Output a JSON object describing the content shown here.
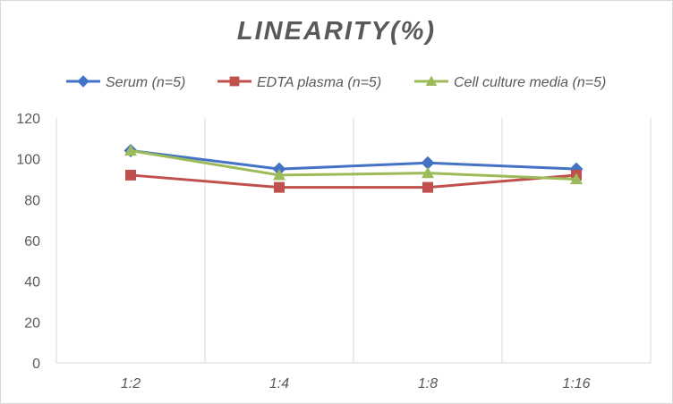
{
  "chart_data": {
    "type": "line",
    "title": "LINEARITY(%)",
    "xlabel": "",
    "ylabel": "",
    "categories": [
      "1:2",
      "1:4",
      "1:8",
      "1:16"
    ],
    "ylim": [
      0,
      120
    ],
    "yticks": [
      0,
      20,
      40,
      60,
      80,
      100,
      120
    ],
    "grid": "vertical",
    "legend_position": "top",
    "series": [
      {
        "name": "Serum (n=5)",
        "values": [
          104,
          95,
          98,
          95
        ],
        "color": "#4472c4",
        "marker": "diamond"
      },
      {
        "name": "EDTA plasma (n=5)",
        "values": [
          92,
          86,
          86,
          92
        ],
        "color": "#c0504d",
        "marker": "square"
      },
      {
        "name": "Cell culture media (n=5)",
        "values": [
          104,
          92,
          93,
          90
        ],
        "color": "#9bbb59",
        "marker": "triangle"
      }
    ]
  }
}
